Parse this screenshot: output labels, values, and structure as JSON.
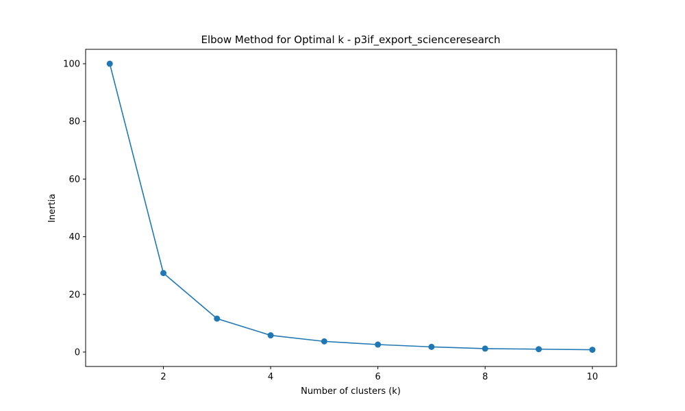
{
  "chart_data": {
    "type": "line",
    "title": "Elbow Method for Optimal k - p3if_export_scienceresearch",
    "xlabel": "Number of clusters (k)",
    "ylabel": "Inertia",
    "x": [
      1,
      2,
      3,
      4,
      5,
      6,
      7,
      8,
      9,
      10
    ],
    "series": [
      {
        "values": [
          100,
          27.4,
          11.6,
          5.8,
          3.7,
          2.6,
          1.8,
          1.2,
          1.0,
          0.8
        ],
        "color": "#1f77b4",
        "marker": "circle"
      }
    ],
    "xlim": [
      0.55,
      10.45
    ],
    "ylim": [
      -5,
      105
    ],
    "xticks": [
      2,
      4,
      6,
      8,
      10
    ],
    "yticks": [
      0,
      20,
      40,
      60,
      80,
      100
    ],
    "grid": false,
    "legend": false
  }
}
